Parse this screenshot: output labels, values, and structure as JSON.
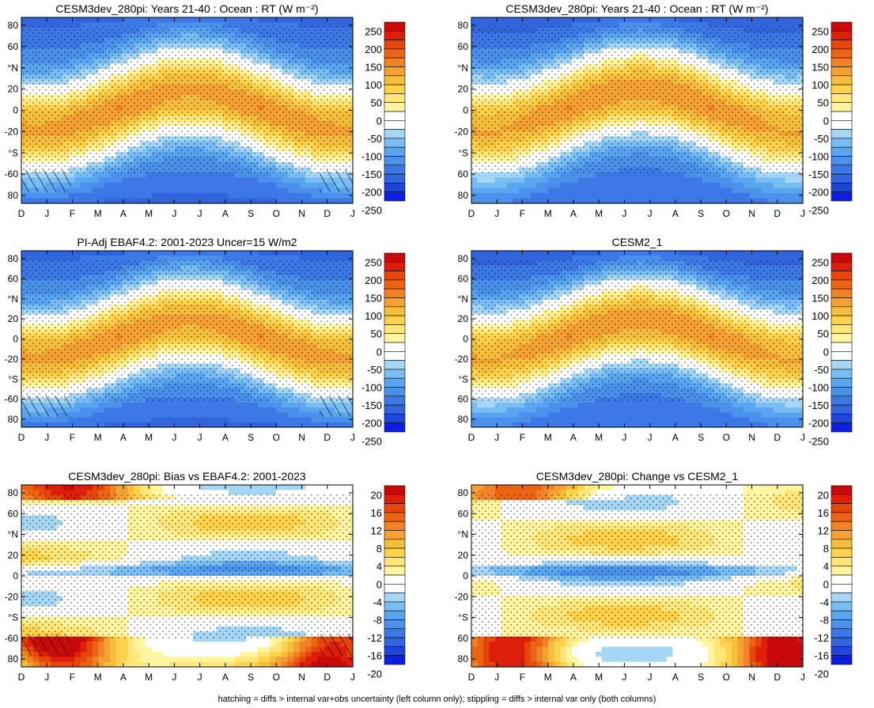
{
  "footnote": "hatching = diffs > internal var+obs uncertainty (left column only); stippling = diffs > internal var only (both columns)",
  "colors": {
    "abs_scale": [
      "#0a1ee6",
      "#1e46dc",
      "#3264dc",
      "#3c78e6",
      "#4b91eb",
      "#5aa5f0",
      "#78bef5",
      "#a5d7f5",
      "#ffffff",
      "#ffffff",
      "#fff5a0",
      "#ffe678",
      "#ffd24b",
      "#f5be3c",
      "#f5a032",
      "#f08228",
      "#eb6414",
      "#e6460a",
      "#dc1e0a",
      "#c80a0a"
    ],
    "diff_scale": [
      "#0a1ee6",
      "#1e46dc",
      "#3264dc",
      "#3c78e6",
      "#4b91eb",
      "#5aa5f0",
      "#78bef5",
      "#a5d7f5",
      "#ffffff",
      "#ffffff",
      "#fff5a0",
      "#ffe678",
      "#ffd24b",
      "#f5be3c",
      "#f5a032",
      "#f08228",
      "#eb6414",
      "#e6460a",
      "#dc1e0a",
      "#c80a0a"
    ]
  },
  "chart_data": [
    {
      "type": "heatmap",
      "title": "CESM3dev_280pi: Years 21-40 : Ocean : RT (W m⁻²)",
      "kind": "abs",
      "x_tick_labels": [
        "D",
        "J",
        "F",
        "M",
        "A",
        "M",
        "J",
        "J",
        "A",
        "S",
        "O",
        "N",
        "D",
        "J"
      ],
      "y_tick_labels": [
        "80",
        "60",
        "°N",
        "20",
        "0",
        "-20",
        "°S",
        "-60",
        "80"
      ],
      "colorbar_labels": [
        "250",
        "200",
        "150",
        "100",
        "50",
        "0",
        "-50",
        "-100",
        "-150",
        "-200",
        "-250"
      ],
      "hatching": true,
      "stippling": true
    },
    {
      "type": "heatmap",
      "title": "CESM3dev_280pi: Years 21-40 : Ocean : RT (W m⁻²)",
      "kind": "abs",
      "x_tick_labels": [
        "D",
        "J",
        "F",
        "M",
        "A",
        "M",
        "J",
        "J",
        "A",
        "S",
        "O",
        "N",
        "D",
        "J"
      ],
      "y_tick_labels": [
        "80",
        "60",
        "°N",
        "20",
        "0",
        "-20",
        "°S",
        "60",
        "80"
      ],
      "colorbar_labels": [
        "250",
        "200",
        "150",
        "100",
        "50",
        "0",
        "-50",
        "-100",
        "-150",
        "-200",
        "-250"
      ],
      "hatching": false,
      "stippling": true
    },
    {
      "type": "heatmap",
      "title": "PI-Adj EBAF4.2: 2001-2023 Uncer=15 W/m2",
      "kind": "abs",
      "x_tick_labels": [
        "D",
        "J",
        "F",
        "M",
        "A",
        "M",
        "J",
        "J",
        "A",
        "S",
        "O",
        "N",
        "D",
        "J"
      ],
      "y_tick_labels": [
        "80",
        "60",
        "°N",
        "20",
        "0",
        "-20",
        "°S",
        "-60",
        "80"
      ],
      "colorbar_labels": [
        "250",
        "200",
        "150",
        "100",
        "50",
        "0",
        "-50",
        "-100",
        "-150",
        "-200",
        "-250"
      ],
      "hatching": true,
      "stippling": true
    },
    {
      "type": "heatmap",
      "title": "CESM2_1",
      "kind": "abs",
      "x_tick_labels": [
        "D",
        "J",
        "F",
        "M",
        "A",
        "M",
        "J",
        "J",
        "A",
        "S",
        "O",
        "N",
        "D",
        "J"
      ],
      "y_tick_labels": [
        "80",
        "60",
        "°N",
        "20",
        "0",
        "-20",
        "°S",
        "60",
        "80"
      ],
      "colorbar_labels": [
        "250",
        "200",
        "150",
        "100",
        "50",
        "0",
        "-50",
        "-100",
        "-150",
        "-200",
        "-250"
      ],
      "hatching": false,
      "stippling": true
    },
    {
      "type": "heatmap",
      "title": "CESM3dev_280pi: Bias vs EBAF4.2: 2001-2023",
      "kind": "bias",
      "x_tick_labels": [
        "D",
        "J",
        "F",
        "M",
        "A",
        "M",
        "J",
        "J",
        "A",
        "S",
        "O",
        "N",
        "D",
        "J"
      ],
      "y_tick_labels": [
        "80",
        "60",
        "°N",
        "20",
        "0",
        "-20",
        "°S",
        "-60",
        "80"
      ],
      "colorbar_labels": [
        "20",
        "16",
        "12",
        "8",
        "4",
        "0",
        "-4",
        "-8",
        "-12",
        "-16",
        "-20"
      ],
      "hatching": true,
      "stippling": true
    },
    {
      "type": "heatmap",
      "title": "CESM3dev_280pi: Change vs CESM2_1",
      "kind": "change",
      "x_tick_labels": [
        "D",
        "J",
        "F",
        "M",
        "A",
        "M",
        "J",
        "J",
        "A",
        "S",
        "O",
        "N",
        "D",
        "J"
      ],
      "y_tick_labels": [
        "80",
        "60",
        "°N",
        "20",
        "0",
        "-20",
        "°S",
        "60",
        "80"
      ],
      "colorbar_labels": [
        "20",
        "16",
        "12",
        "8",
        "4",
        "0",
        "-4",
        "-8",
        "-12",
        "-16",
        "-20"
      ],
      "hatching": false,
      "stippling": true
    }
  ]
}
